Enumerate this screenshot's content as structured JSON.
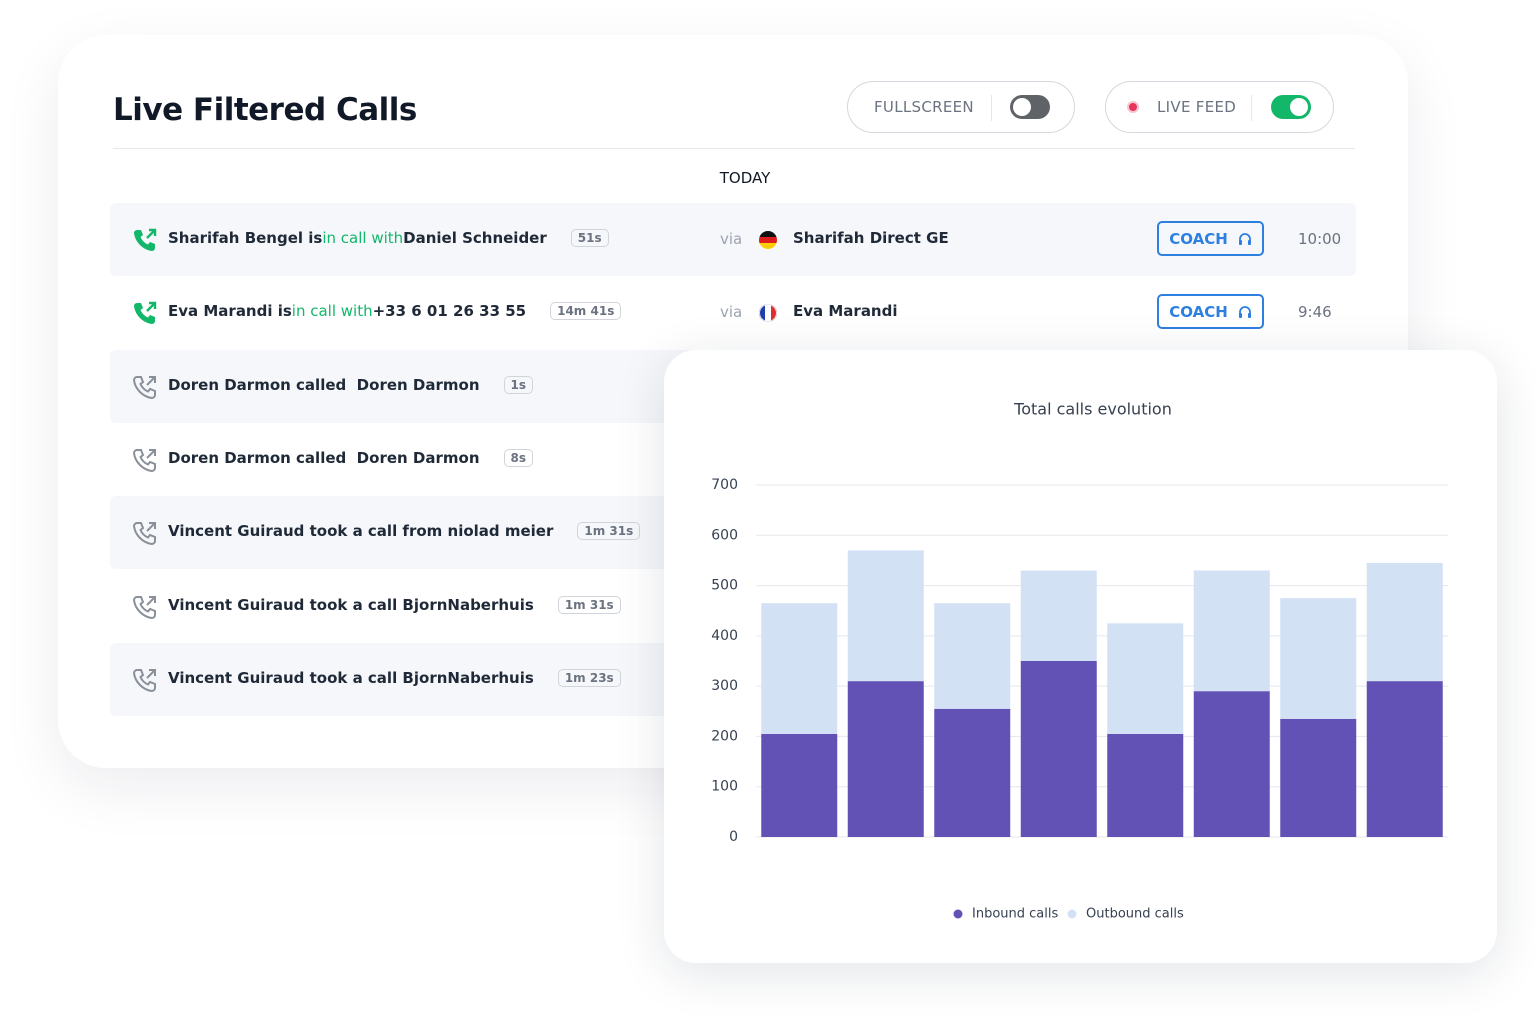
{
  "header": {
    "title": "Live Filtered Calls",
    "toggles": [
      {
        "label": "FULLSCREEN",
        "on": false
      },
      {
        "label": "LIVE FEED",
        "on": true
      }
    ]
  },
  "day": "TODAY",
  "calls": [
    {
      "caller": "Sharifah Bengel is",
      "status": "in call with",
      "callee": "Daniel Schneider",
      "duration": "51s",
      "via": "via",
      "line": "Sharifah Direct GE",
      "action": "COACH",
      "time": "10:00"
    },
    {
      "caller": "Eva Marandi is",
      "status": "in call with",
      "callee": "+33 6 01 26 33 55",
      "duration": "14m 41s",
      "via": "via",
      "line": "Eva Marandi",
      "action": "COACH",
      "time": "9:46"
    },
    {
      "text": "Doren Darmon called  Doren Darmon",
      "duration": "1s"
    },
    {
      "text": "Doren Darmon called  Doren Darmon",
      "duration": "8s"
    },
    {
      "text": "Vincent Guiraud took a call from niolad meier",
      "duration": "1m 31s"
    },
    {
      "text": "Vincent Guiraud took a call BjornNaberhuis",
      "duration": "1m 31s"
    },
    {
      "text": "Vincent Guiraud took a call BjornNaberhuis",
      "duration": "1m 23s"
    }
  ],
  "chart_data": {
    "type": "stacked_bar",
    "title": "Total calls evolution",
    "categories": [
      null,
      null,
      null,
      null,
      null,
      null,
      null,
      null
    ],
    "series": [
      {
        "name": "Inbound calls",
        "color": "#6352b5",
        "values": [
          205,
          310,
          255,
          350,
          205,
          290,
          235,
          310
        ]
      },
      {
        "name": "Outbound calls",
        "color": "#d3e1f5",
        "values": [
          260,
          260,
          210,
          180,
          220,
          240,
          240,
          235
        ]
      }
    ],
    "ylim": [
      0,
      700
    ],
    "yticks": [
      0,
      100,
      200,
      300,
      400,
      500,
      600,
      700
    ],
    "grid": true
  }
}
